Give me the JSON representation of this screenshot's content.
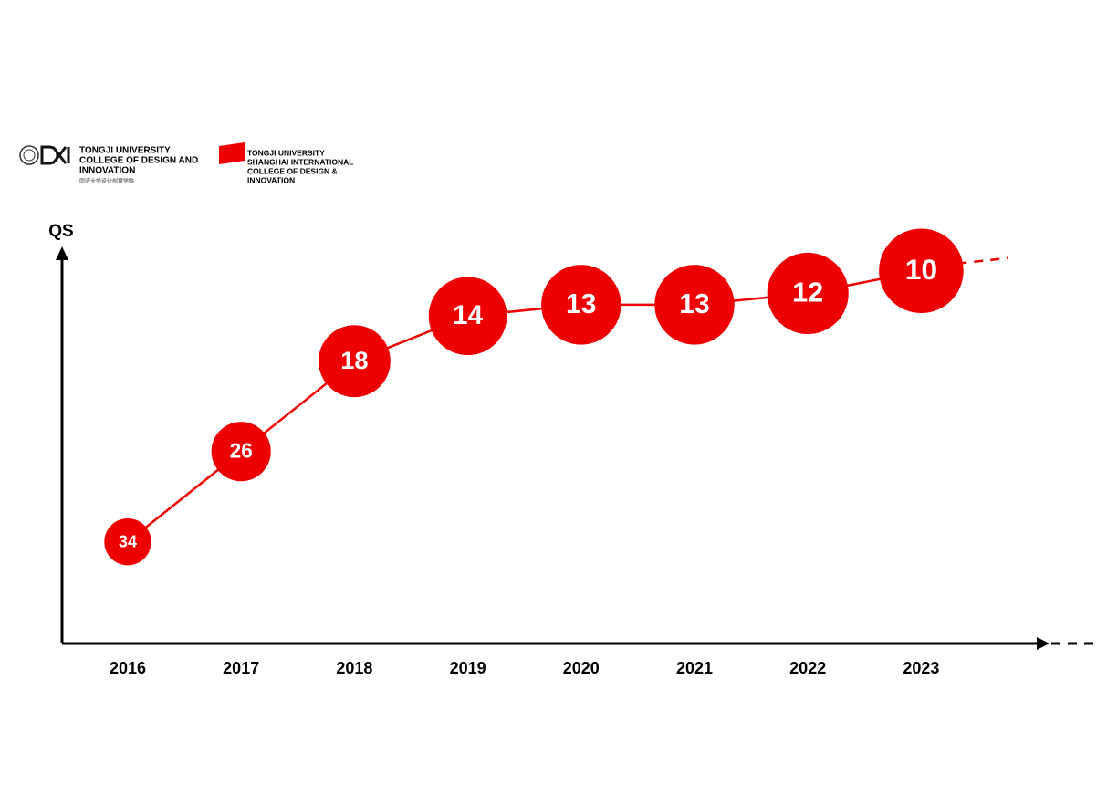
{
  "logos": {
    "left": {
      "lines": [
        "TONGJI UNIVERSITY",
        "COLLEGE OF DESIGN AND",
        "INNOVATION"
      ],
      "subtitle": "同济大学设计创意学院"
    },
    "right": {
      "lines": [
        "TONGJI UNIVERSITY",
        "SHANGHAI INTERNATIONAL",
        "COLLEGE OF DESIGN &",
        "INNOVATION"
      ]
    }
  },
  "chart_data": {
    "type": "bubble-line",
    "y_label": "QS",
    "categories": [
      "2016",
      "2017",
      "2018",
      "2019",
      "2020",
      "2021",
      "2022",
      "2023"
    ],
    "values": [
      34,
      26,
      18,
      14,
      13,
      13,
      12,
      10
    ],
    "color": "#ee0000",
    "ylim": [
      43,
      8
    ]
  }
}
